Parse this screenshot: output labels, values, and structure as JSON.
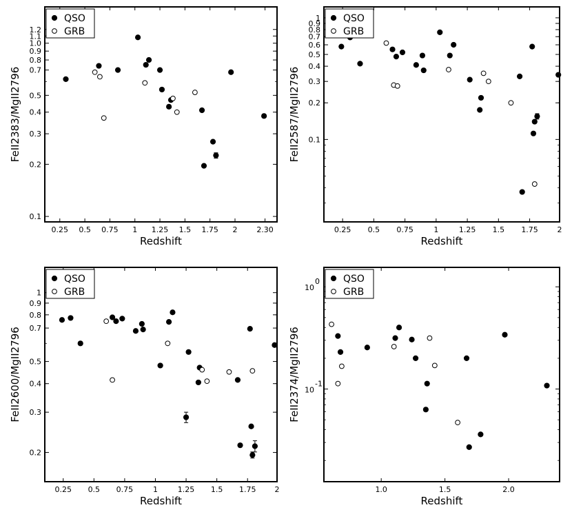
{
  "chart_data": [
    {
      "type": "scatter",
      "xlabel": "Redshift",
      "ylabel": "FeII2383/MgII2796",
      "yscale": "log",
      "xlim": [
        0.1,
        2.42
      ],
      "ylim": [
        0.093,
        1.62
      ],
      "legend_placement": "top-left",
      "legend": [
        "QSO",
        "GRB"
      ],
      "x_ticks": [
        {
          "v": 0.25,
          "label": "0.25"
        },
        {
          "v": 0.5,
          "label": "0.5"
        },
        {
          "v": 0.75,
          "label": "0.75"
        },
        {
          "v": 1.0,
          "label": "1"
        },
        {
          "v": 1.25,
          "label": "1.25"
        },
        {
          "v": 1.5,
          "label": "1.5"
        },
        {
          "v": 1.75,
          "label": "1.75"
        },
        {
          "v": 2.0,
          "label": "2"
        },
        {
          "v": 2.3,
          "label": "2.30"
        }
      ],
      "y_ticks": [
        {
          "v": 0.1,
          "label": "0.1"
        },
        {
          "v": 0.2,
          "label": "0.2"
        },
        {
          "v": 0.3,
          "label": "0.3"
        },
        {
          "v": 0.4,
          "label": "0.4"
        },
        {
          "v": 0.5,
          "label": "0.5"
        },
        {
          "v": 0.7,
          "label": "0.7"
        },
        {
          "v": 0.8,
          "label": "0.8"
        },
        {
          "v": 0.9,
          "label": "0.9"
        },
        {
          "v": 1.0,
          "label": "1.0"
        },
        {
          "v": 1.1,
          "label": "1.1"
        },
        {
          "v": 1.2,
          "label": "1.2"
        }
      ],
      "series": [
        {
          "name": "QSO",
          "marker": "filled",
          "points": [
            {
              "x": 0.31,
              "y": 0.62
            },
            {
              "x": 0.64,
              "y": 0.74
            },
            {
              "x": 0.83,
              "y": 0.7
            },
            {
              "x": 1.03,
              "y": 1.08
            },
            {
              "x": 1.11,
              "y": 0.75
            },
            {
              "x": 1.14,
              "y": 0.8
            },
            {
              "x": 1.25,
              "y": 0.7
            },
            {
              "x": 1.27,
              "y": 0.54
            },
            {
              "x": 1.34,
              "y": 0.43
            },
            {
              "x": 1.36,
              "y": 0.47
            },
            {
              "x": 1.67,
              "y": 0.41
            },
            {
              "x": 1.69,
              "y": 0.196
            },
            {
              "x": 1.78,
              "y": 0.27
            },
            {
              "x": 1.81,
              "y": 0.225,
              "yerr": 0.008
            },
            {
              "x": 1.96,
              "y": 0.68
            },
            {
              "x": 2.29,
              "y": 0.38
            }
          ]
        },
        {
          "name": "GRB",
          "marker": "open",
          "points": [
            {
              "x": 0.6,
              "y": 0.68
            },
            {
              "x": 0.65,
              "y": 0.64
            },
            {
              "x": 0.69,
              "y": 0.37
            },
            {
              "x": 1.1,
              "y": 0.59
            },
            {
              "x": 1.38,
              "y": 0.48
            },
            {
              "x": 1.42,
              "y": 0.4
            },
            {
              "x": 1.6,
              "y": 0.52
            }
          ]
        }
      ]
    },
    {
      "type": "scatter",
      "xlabel": "Redshift",
      "ylabel": "FeII2587/MgII2796",
      "yscale": "log",
      "xlim": [
        0.1,
        1.99
      ],
      "ylim": [
        0.021,
        1.23
      ],
      "legend_placement": "top-left",
      "legend": [
        "QSO",
        "GRB"
      ],
      "x_ticks": [
        {
          "v": 0.25,
          "label": "0.25"
        },
        {
          "v": 0.5,
          "label": "0.5"
        },
        {
          "v": 0.75,
          "label": "0.75"
        },
        {
          "v": 1.0,
          "label": "1"
        },
        {
          "v": 1.25,
          "label": "1.25"
        },
        {
          "v": 1.5,
          "label": "1.5"
        },
        {
          "v": 1.75,
          "label": "1.75"
        },
        {
          "v": 1.99,
          "label": "2"
        }
      ],
      "y_ticks": [
        {
          "v": 0.1,
          "label": "0.1"
        },
        {
          "v": 0.2,
          "label": "0.2"
        },
        {
          "v": 0.3,
          "label": "0.3"
        },
        {
          "v": 0.4,
          "label": "0.4"
        },
        {
          "v": 0.5,
          "label": "0.5"
        },
        {
          "v": 0.6,
          "label": "0.6"
        },
        {
          "v": 0.7,
          "label": "0.7"
        },
        {
          "v": 0.8,
          "label": "0.8"
        },
        {
          "v": 0.9,
          "label": "0.9"
        },
        {
          "v": 1.0,
          "label": "1"
        }
      ],
      "series": [
        {
          "name": "QSO",
          "marker": "filled",
          "points": [
            {
              "x": 0.24,
              "y": 0.58
            },
            {
              "x": 0.31,
              "y": 0.69
            },
            {
              "x": 0.39,
              "y": 0.42
            },
            {
              "x": 0.65,
              "y": 0.55
            },
            {
              "x": 0.68,
              "y": 0.48
            },
            {
              "x": 0.73,
              "y": 0.52
            },
            {
              "x": 0.84,
              "y": 0.41
            },
            {
              "x": 0.89,
              "y": 0.49
            },
            {
              "x": 0.9,
              "y": 0.37
            },
            {
              "x": 1.03,
              "y": 0.76
            },
            {
              "x": 1.11,
              "y": 0.49
            },
            {
              "x": 1.14,
              "y": 0.6
            },
            {
              "x": 1.27,
              "y": 0.31
            },
            {
              "x": 1.35,
              "y": 0.175
            },
            {
              "x": 1.36,
              "y": 0.22
            },
            {
              "x": 1.67,
              "y": 0.33
            },
            {
              "x": 1.69,
              "y": 0.037
            },
            {
              "x": 1.77,
              "y": 0.58
            },
            {
              "x": 1.78,
              "y": 0.112
            },
            {
              "x": 1.79,
              "y": 0.14
            },
            {
              "x": 1.81,
              "y": 0.155,
              "yerr": 0.008
            },
            {
              "x": 1.98,
              "y": 0.34
            }
          ]
        },
        {
          "name": "GRB",
          "marker": "open",
          "points": [
            {
              "x": 0.6,
              "y": 0.62
            },
            {
              "x": 0.66,
              "y": 0.28
            },
            {
              "x": 0.69,
              "y": 0.275
            },
            {
              "x": 1.1,
              "y": 0.375
            },
            {
              "x": 1.38,
              "y": 0.35
            },
            {
              "x": 1.42,
              "y": 0.3
            },
            {
              "x": 1.6,
              "y": 0.2
            },
            {
              "x": 1.79,
              "y": 0.043
            }
          ]
        }
      ]
    },
    {
      "type": "scatter",
      "xlabel": "Redshift",
      "ylabel": "FeII2600/MgII2796",
      "yscale": "log",
      "xlim": [
        0.1,
        1.99
      ],
      "ylim": [
        0.149,
        1.29
      ],
      "legend_placement": "top-left",
      "legend": [
        "QSO",
        "GRB"
      ],
      "x_ticks": [
        {
          "v": 0.25,
          "label": "0.25"
        },
        {
          "v": 0.5,
          "label": "0.5"
        },
        {
          "v": 0.75,
          "label": "0.75"
        },
        {
          "v": 1.0,
          "label": "1"
        },
        {
          "v": 1.25,
          "label": "1.25"
        },
        {
          "v": 1.5,
          "label": "1.5"
        },
        {
          "v": 1.75,
          "label": "1.75"
        },
        {
          "v": 1.99,
          "label": "2"
        }
      ],
      "y_ticks": [
        {
          "v": 0.2,
          "label": "0.2"
        },
        {
          "v": 0.3,
          "label": "0.3"
        },
        {
          "v": 0.4,
          "label": "0.4"
        },
        {
          "v": 0.5,
          "label": "0.5"
        },
        {
          "v": 0.7,
          "label": "0.7"
        },
        {
          "v": 0.8,
          "label": "0.8"
        },
        {
          "v": 0.9,
          "label": "0.9"
        },
        {
          "v": 1.0,
          "label": "1"
        }
      ],
      "series": [
        {
          "name": "QSO",
          "marker": "filled",
          "points": [
            {
              "x": 0.24,
              "y": 0.76
            },
            {
              "x": 0.31,
              "y": 0.775
            },
            {
              "x": 0.39,
              "y": 0.6
            },
            {
              "x": 0.65,
              "y": 0.78
            },
            {
              "x": 0.68,
              "y": 0.75
            },
            {
              "x": 0.73,
              "y": 0.77
            },
            {
              "x": 0.84,
              "y": 0.68
            },
            {
              "x": 0.89,
              "y": 0.73
            },
            {
              "x": 0.9,
              "y": 0.69
            },
            {
              "x": 1.04,
              "y": 0.48
            },
            {
              "x": 1.11,
              "y": 0.745
            },
            {
              "x": 1.14,
              "y": 0.82
            },
            {
              "x": 1.25,
              "y": 0.285,
              "yerr": 0.015
            },
            {
              "x": 1.27,
              "y": 0.55
            },
            {
              "x": 1.35,
              "y": 0.405
            },
            {
              "x": 1.36,
              "y": 0.47
            },
            {
              "x": 1.67,
              "y": 0.415
            },
            {
              "x": 1.69,
              "y": 0.215
            },
            {
              "x": 1.77,
              "y": 0.695
            },
            {
              "x": 1.78,
              "y": 0.26
            },
            {
              "x": 1.79,
              "y": 0.195,
              "yerr": 0.006
            },
            {
              "x": 1.81,
              "y": 0.213,
              "yerr": 0.012
            },
            {
              "x": 1.97,
              "y": 0.59
            }
          ]
        },
        {
          "name": "GRB",
          "marker": "open",
          "points": [
            {
              "x": 0.6,
              "y": 0.75
            },
            {
              "x": 0.65,
              "y": 0.415
            },
            {
              "x": 1.1,
              "y": 0.6
            },
            {
              "x": 1.38,
              "y": 0.46
            },
            {
              "x": 1.42,
              "y": 0.41
            },
            {
              "x": 1.6,
              "y": 0.45
            },
            {
              "x": 1.79,
              "y": 0.455
            }
          ]
        }
      ]
    },
    {
      "type": "scatter",
      "xlabel": "Redshift",
      "ylabel": "FeII2374/MgII2796",
      "yscale": "log",
      "xlim": [
        0.55,
        2.4
      ],
      "ylim": [
        0.0124,
        1.55
      ],
      "legend_placement": "top-left",
      "legend": [
        "QSO",
        "GRB"
      ],
      "x_ticks": [
        {
          "v": 1.0,
          "label": "1.0"
        },
        {
          "v": 1.5,
          "label": "1.5"
        },
        {
          "v": 2.0,
          "label": "2.0"
        }
      ],
      "y_ticks": [
        {
          "v": 0.1,
          "label": "10",
          "exp": "-1"
        },
        {
          "v": 1.0,
          "label": "10",
          "exp": "0"
        }
      ],
      "series": [
        {
          "name": "QSO",
          "marker": "filled",
          "points": [
            {
              "x": 0.66,
              "y": 0.33
            },
            {
              "x": 0.68,
              "y": 0.23
            },
            {
              "x": 0.89,
              "y": 0.255
            },
            {
              "x": 1.11,
              "y": 0.315
            },
            {
              "x": 1.14,
              "y": 0.4
            },
            {
              "x": 1.24,
              "y": 0.305
            },
            {
              "x": 1.27,
              "y": 0.2
            },
            {
              "x": 1.35,
              "y": 0.063
            },
            {
              "x": 1.36,
              "y": 0.113
            },
            {
              "x": 1.67,
              "y": 0.2
            },
            {
              "x": 1.69,
              "y": 0.027
            },
            {
              "x": 1.78,
              "y": 0.036
            },
            {
              "x": 1.97,
              "y": 0.34
            },
            {
              "x": 2.3,
              "y": 0.108
            }
          ]
        },
        {
          "name": "GRB",
          "marker": "open",
          "points": [
            {
              "x": 0.61,
              "y": 0.43
            },
            {
              "x": 0.66,
              "y": 0.113
            },
            {
              "x": 0.69,
              "y": 0.167
            },
            {
              "x": 1.1,
              "y": 0.26
            },
            {
              "x": 1.38,
              "y": 0.315
            },
            {
              "x": 1.42,
              "y": 0.17
            },
            {
              "x": 1.6,
              "y": 0.047
            }
          ]
        }
      ]
    }
  ]
}
